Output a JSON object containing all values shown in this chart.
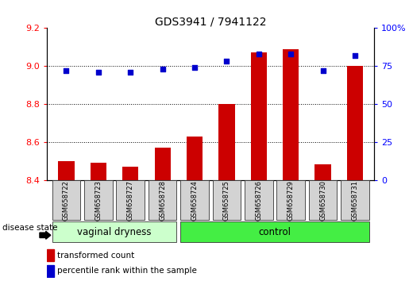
{
  "title": "GDS3941 / 7941122",
  "samples": [
    "GSM658722",
    "GSM658723",
    "GSM658727",
    "GSM658728",
    "GSM658724",
    "GSM658725",
    "GSM658726",
    "GSM658729",
    "GSM658730",
    "GSM658731"
  ],
  "bar_values": [
    8.5,
    8.49,
    8.47,
    8.57,
    8.63,
    8.8,
    9.07,
    9.09,
    8.48,
    9.0
  ],
  "dot_values": [
    72,
    71,
    71,
    73,
    74,
    78,
    83,
    83,
    72,
    82
  ],
  "ylim_left": [
    8.4,
    9.2
  ],
  "ylim_right": [
    0,
    100
  ],
  "yticks_left": [
    8.4,
    8.6,
    8.8,
    9.0,
    9.2
  ],
  "yticks_right": [
    0,
    25,
    50,
    75,
    100
  ],
  "grid_values": [
    8.6,
    8.8,
    9.0
  ],
  "bar_color": "#cc0000",
  "dot_color": "#0000cc",
  "groups": [
    {
      "label": "vaginal dryness",
      "start": 0,
      "end": 3,
      "color": "#ccffcc"
    },
    {
      "label": "control",
      "start": 4,
      "end": 9,
      "color": "#44ee44"
    }
  ],
  "disease_state_label": "disease state",
  "legend_bar_label": "transformed count",
  "legend_dot_label": "percentile rank within the sample",
  "bar_width": 0.5,
  "base_value": 8.4,
  "bg_color": "#ffffff",
  "label_box_color": "#d3d3d3",
  "box_border_color": "#333333"
}
